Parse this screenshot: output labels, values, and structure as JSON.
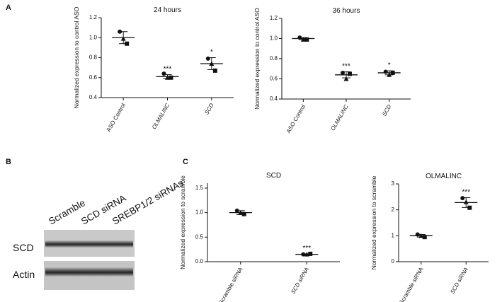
{
  "panels": {
    "letters": [
      "A",
      "B",
      "C"
    ],
    "blot": {
      "lanes": [
        "Scramble",
        "SCD siRNA",
        "SREBP1/2 siRNAs"
      ],
      "rows": [
        "SCD",
        "Actin"
      ]
    }
  },
  "chart_data": [
    {
      "type": "dot",
      "title": "24 hours",
      "y_label": "Normalized expression to control ASO",
      "categories": [
        "ASO Control",
        "OLMALINC",
        "SCD"
      ],
      "category_style": [
        "normal",
        "italic",
        "italic"
      ],
      "values": [
        [
          1.06,
          0.94,
          0.99
        ],
        [
          0.64,
          0.6,
          0.6
        ],
        [
          0.79,
          0.67,
          0.74
        ]
      ],
      "means": [
        1.0,
        0.61,
        0.74
      ],
      "errors": [
        0.06,
        0.02,
        0.06
      ],
      "annotations": [
        null,
        "***",
        "*"
      ],
      "ylim": [
        0.4,
        1.2
      ],
      "yticks": [
        0.4,
        0.6,
        0.8,
        {
          "value": 1,
          "label": "1.0"
        },
        1.2
      ],
      "color": "#111111"
    },
    {
      "type": "dot",
      "title": "36 hours",
      "y_label": "Normalized expression to control ASO",
      "categories": [
        "ASO Control",
        "OLMALINC",
        "SCD"
      ],
      "category_style": [
        "normal",
        "italic",
        "italic"
      ],
      "values": [
        [
          1.01,
          0.99,
          0.99
        ],
        [
          0.66,
          0.65,
          0.6
        ],
        [
          0.67,
          0.66,
          0.64
        ]
      ],
      "means": [
        1.0,
        0.64,
        0.66
      ],
      "errors": [
        0.01,
        0.03,
        0.02
      ],
      "annotations": [
        null,
        "***",
        "*"
      ],
      "ylim": [
        0.4,
        1.2
      ],
      "yticks": [
        0.4,
        0.6,
        0.8,
        {
          "value": 1,
          "label": "1.0"
        },
        1.2
      ],
      "color": "#111111"
    },
    {
      "type": "dot",
      "title": "SCD",
      "y_label": "Normalized expression to scramble",
      "categories": [
        "Scramble siRNA",
        "SCD siRNA"
      ],
      "category_style": [
        "normal",
        "italic"
      ],
      "values": [
        [
          1.04,
          0.97,
          1.0
        ],
        [
          0.15,
          0.16,
          0.15
        ]
      ],
      "means": [
        1.0,
        0.15
      ],
      "errors": [
        0.04,
        0.01
      ],
      "annotations": [
        null,
        "***"
      ],
      "ylim": [
        0,
        1.6
      ],
      "yticks": [
        {
          "value": 0,
          "label": "0.0"
        },
        0.5,
        {
          "value": 1,
          "label": "1.0"
        },
        1.5
      ],
      "color": "#111111"
    },
    {
      "type": "dot",
      "title": "OLMALINC",
      "y_label": "Normalized expression to scramble",
      "categories": [
        "Scramble siRNA",
        "SCD siRNA"
      ],
      "category_style": [
        "normal",
        "italic"
      ],
      "values": [
        [
          1.05,
          0.95,
          1.0
        ],
        [
          2.45,
          2.08,
          2.3
        ]
      ],
      "means": [
        1.0,
        2.28
      ],
      "errors": [
        0.05,
        0.19
      ],
      "annotations": [
        null,
        "***"
      ],
      "ylim": [
        0,
        3
      ],
      "yticks": [
        0,
        1,
        2,
        3
      ],
      "color": "#111111"
    }
  ]
}
